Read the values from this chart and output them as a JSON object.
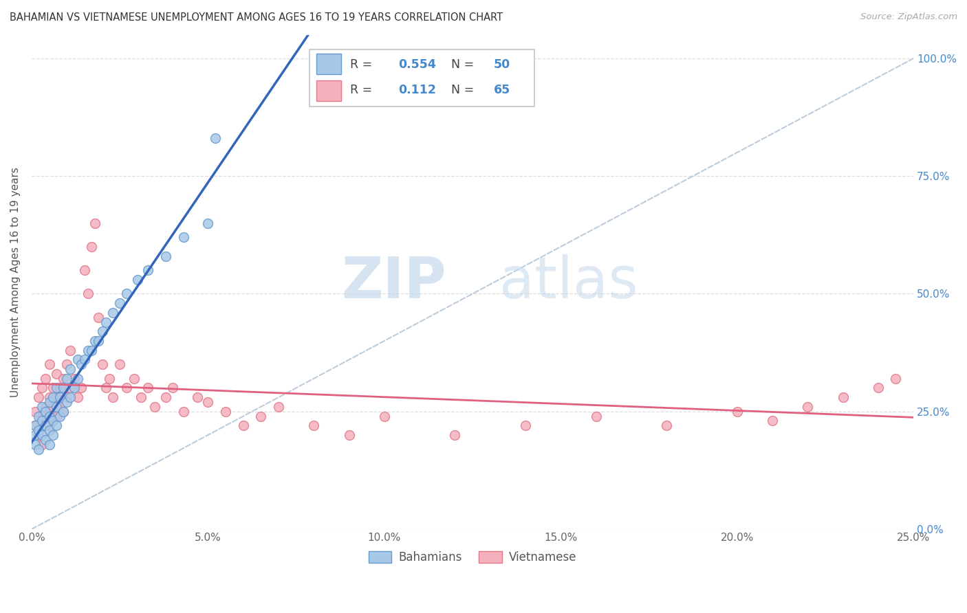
{
  "title": "BAHAMIAN VS VIETNAMESE UNEMPLOYMENT AMONG AGES 16 TO 19 YEARS CORRELATION CHART",
  "source": "Source: ZipAtlas.com",
  "ylabel": "Unemployment Among Ages 16 to 19 years",
  "xlim": [
    0.0,
    0.25
  ],
  "ylim": [
    0.0,
    1.05
  ],
  "xticks": [
    0.0,
    0.05,
    0.1,
    0.15,
    0.2,
    0.25
  ],
  "xticklabels": [
    "0.0%",
    "5.0%",
    "10.0%",
    "15.0%",
    "20.0%",
    "25.0%"
  ],
  "yticks": [
    0.0,
    0.25,
    0.5,
    0.75,
    1.0
  ],
  "yticklabels_right": [
    "0.0%",
    "25.0%",
    "50.0%",
    "75.0%",
    "100.0%"
  ],
  "bahamian_color": "#A8C8E8",
  "vietnamese_color": "#F4B0BC",
  "bahamian_edge_color": "#6699CC",
  "vietnamese_edge_color": "#E07888",
  "bahamian_line_color": "#3366BB",
  "vietnamese_line_color": "#E06080",
  "ref_line_color": "#BBCCDD",
  "legend_text_color": "#4488CC",
  "R_bahamian": 0.554,
  "N_bahamian": 50,
  "R_vietnamese": 0.112,
  "N_vietnamese": 65,
  "watermark_zip": "ZIP",
  "watermark_atlas": "atlas",
  "bahamian_x": [
    0.001,
    0.001,
    0.001,
    0.002,
    0.002,
    0.002,
    0.003,
    0.003,
    0.003,
    0.004,
    0.004,
    0.004,
    0.005,
    0.005,
    0.005,
    0.005,
    0.006,
    0.006,
    0.006,
    0.007,
    0.007,
    0.007,
    0.008,
    0.008,
    0.009,
    0.009,
    0.01,
    0.01,
    0.011,
    0.011,
    0.012,
    0.013,
    0.013,
    0.014,
    0.015,
    0.016,
    0.017,
    0.018,
    0.019,
    0.02,
    0.021,
    0.023,
    0.025,
    0.027,
    0.03,
    0.033,
    0.038,
    0.043,
    0.05,
    0.052
  ],
  "bahamian_y": [
    0.18,
    0.2,
    0.22,
    0.17,
    0.21,
    0.24,
    0.2,
    0.23,
    0.26,
    0.19,
    0.22,
    0.25,
    0.18,
    0.21,
    0.24,
    0.27,
    0.2,
    0.23,
    0.28,
    0.22,
    0.26,
    0.3,
    0.24,
    0.28,
    0.25,
    0.3,
    0.27,
    0.32,
    0.28,
    0.34,
    0.3,
    0.32,
    0.36,
    0.35,
    0.36,
    0.38,
    0.38,
    0.4,
    0.4,
    0.42,
    0.44,
    0.46,
    0.48,
    0.5,
    0.53,
    0.55,
    0.58,
    0.62,
    0.65,
    0.83
  ],
  "vietnamese_x": [
    0.001,
    0.001,
    0.002,
    0.002,
    0.003,
    0.003,
    0.003,
    0.004,
    0.004,
    0.005,
    0.005,
    0.005,
    0.006,
    0.006,
    0.007,
    0.007,
    0.007,
    0.008,
    0.008,
    0.009,
    0.009,
    0.01,
    0.01,
    0.011,
    0.011,
    0.012,
    0.013,
    0.014,
    0.015,
    0.016,
    0.017,
    0.018,
    0.019,
    0.02,
    0.021,
    0.022,
    0.023,
    0.025,
    0.027,
    0.029,
    0.031,
    0.033,
    0.035,
    0.038,
    0.04,
    0.043,
    0.047,
    0.05,
    0.055,
    0.06,
    0.065,
    0.07,
    0.08,
    0.09,
    0.1,
    0.12,
    0.14,
    0.16,
    0.18,
    0.2,
    0.21,
    0.22,
    0.23,
    0.24,
    0.245
  ],
  "vietnamese_y": [
    0.22,
    0.25,
    0.2,
    0.28,
    0.24,
    0.3,
    0.18,
    0.26,
    0.32,
    0.22,
    0.28,
    0.35,
    0.26,
    0.3,
    0.24,
    0.28,
    0.33,
    0.26,
    0.3,
    0.25,
    0.32,
    0.28,
    0.35,
    0.3,
    0.38,
    0.32,
    0.28,
    0.3,
    0.55,
    0.5,
    0.6,
    0.65,
    0.45,
    0.35,
    0.3,
    0.32,
    0.28,
    0.35,
    0.3,
    0.32,
    0.28,
    0.3,
    0.26,
    0.28,
    0.3,
    0.25,
    0.28,
    0.27,
    0.25,
    0.22,
    0.24,
    0.26,
    0.22,
    0.2,
    0.24,
    0.2,
    0.22,
    0.24,
    0.22,
    0.25,
    0.23,
    0.26,
    0.28,
    0.3,
    0.32
  ]
}
